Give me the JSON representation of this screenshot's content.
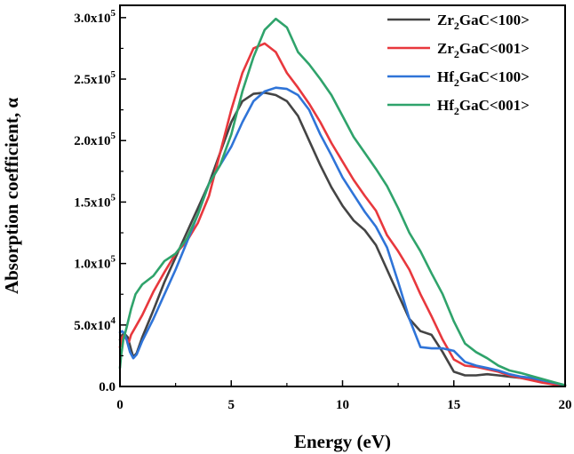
{
  "chart_data": {
    "type": "line",
    "xlabel": "Energy (eV)",
    "ylabel": "Absorption coefficient, α",
    "xlim": [
      0,
      20
    ],
    "ylim": [
      0,
      310000
    ],
    "xticks": [
      0,
      5,
      10,
      15,
      20
    ],
    "xtick_labels": [
      "0",
      "5",
      "10",
      "15",
      "20"
    ],
    "yticks": [
      0,
      50000,
      100000,
      150000,
      200000,
      250000,
      300000
    ],
    "ytick_labels": [
      {
        "base": "0.0",
        "exp": ""
      },
      {
        "base": "5.0x10",
        "exp": "4"
      },
      {
        "base": "1.0x10",
        "exp": "5"
      },
      {
        "base": "1.5x10",
        "exp": "5"
      },
      {
        "base": "2.0x10",
        "exp": "5"
      },
      {
        "base": "2.5x10",
        "exp": "5"
      },
      {
        "base": "3.0x10",
        "exp": "5"
      }
    ],
    "grid": false,
    "legend_position": "top-right",
    "series": [
      {
        "legend": {
          "prefix": "Zr",
          "sub": "2",
          "suffix": "GaC<100>"
        },
        "color": "#444444",
        "x": [
          0,
          0.1,
          0.2,
          0.35,
          0.5,
          0.6,
          0.75,
          1.0,
          1.5,
          2,
          2.5,
          3,
          3.5,
          4,
          4.5,
          5,
          5.5,
          6,
          6.5,
          7,
          7.5,
          8,
          8.5,
          9,
          9.5,
          10,
          10.5,
          11,
          11.5,
          12,
          12.5,
          13,
          13.5,
          14,
          14.5,
          15,
          15.5,
          16,
          16.5,
          17,
          17.5,
          18,
          18.5,
          19,
          19.5,
          20
        ],
        "y": [
          38000,
          42000,
          43000,
          40000,
          30000,
          24000,
          27000,
          40000,
          62000,
          85000,
          105000,
          125000,
          145000,
          165000,
          190000,
          215000,
          232000,
          238000,
          239000,
          237000,
          232000,
          220000,
          200000,
          180000,
          162000,
          147000,
          135000,
          127000,
          115000,
          95000,
          75000,
          55000,
          45000,
          42000,
          28000,
          12000,
          9000,
          9000,
          10000,
          9000,
          8000,
          7000,
          6000,
          5000,
          3000,
          1000
        ]
      },
      {
        "legend": {
          "prefix": "Zr",
          "sub": "2",
          "suffix": "GaC<001>"
        },
        "color": "#e8383d",
        "x": [
          0,
          0.1,
          0.2,
          0.3,
          0.4,
          0.5,
          0.75,
          1.0,
          1.5,
          2,
          2.5,
          3,
          3.5,
          4,
          4.5,
          5,
          5.5,
          6,
          6.5,
          7,
          7.5,
          8,
          8.5,
          9,
          9.5,
          10,
          10.5,
          11,
          11.5,
          12,
          12.5,
          13,
          13.5,
          14,
          14.5,
          15,
          15.5,
          16,
          16.5,
          17,
          17.5,
          18,
          18.5,
          19,
          19.5,
          20
        ],
        "y": [
          32000,
          40000,
          42000,
          38000,
          36000,
          42000,
          50000,
          58000,
          77000,
          93000,
          108000,
          118000,
          133000,
          155000,
          190000,
          225000,
          255000,
          275000,
          279000,
          272000,
          255000,
          243000,
          230000,
          215000,
          198000,
          183000,
          168000,
          155000,
          143000,
          123000,
          110000,
          95000,
          75000,
          57000,
          38000,
          22000,
          17000,
          16000,
          14000,
          12000,
          9000,
          7000,
          5000,
          3000,
          1500,
          500
        ]
      },
      {
        "legend": {
          "prefix": "Hf",
          "sub": "2",
          "suffix": "GaC<100>"
        },
        "color": "#2f74d8",
        "x": [
          0,
          0.1,
          0.2,
          0.3,
          0.45,
          0.6,
          0.75,
          1.0,
          1.5,
          2,
          2.5,
          3,
          3.5,
          4,
          4.5,
          5,
          5.5,
          6,
          6.5,
          7,
          7.5,
          8,
          8.5,
          9,
          9.5,
          10,
          10.5,
          11,
          11.5,
          12,
          12.5,
          13,
          13.5,
          14,
          14.5,
          15,
          15.5,
          16,
          16.5,
          17,
          17.5,
          18,
          18.5,
          19,
          19.5,
          20
        ],
        "y": [
          44000,
          45000,
          43000,
          38000,
          28000,
          23000,
          26000,
          37000,
          55000,
          75000,
          95000,
          117000,
          140000,
          165000,
          180000,
          195000,
          215000,
          232000,
          240000,
          243000,
          242000,
          237000,
          225000,
          205000,
          188000,
          170000,
          156000,
          142000,
          130000,
          113000,
          85000,
          55000,
          32000,
          31000,
          31000,
          29000,
          20000,
          17000,
          15000,
          13000,
          10000,
          8000,
          7000,
          5000,
          3000,
          1000
        ]
      },
      {
        "legend": {
          "prefix": "Hf",
          "sub": "2",
          "suffix": "GaC<001>"
        },
        "color": "#2fa36b",
        "x": [
          0,
          0.05,
          0.15,
          0.3,
          0.5,
          0.7,
          1.0,
          1.5,
          2,
          2.5,
          3,
          3.5,
          4,
          4.5,
          5,
          5.5,
          6,
          6.5,
          7,
          7.5,
          8,
          8.5,
          9,
          9.5,
          10,
          10.5,
          11,
          11.5,
          12,
          12.5,
          13,
          13.5,
          14,
          14.5,
          15,
          15.5,
          16,
          16.5,
          17,
          17.5,
          18,
          18.5,
          19,
          19.5,
          20
        ],
        "y": [
          15000,
          25000,
          38000,
          48000,
          63000,
          75000,
          83000,
          90000,
          102000,
          108000,
          120000,
          140000,
          165000,
          180000,
          205000,
          240000,
          268000,
          290000,
          299000,
          292000,
          272000,
          262000,
          250000,
          237000,
          220000,
          203000,
          190000,
          177000,
          163000,
          145000,
          125000,
          110000,
          92000,
          75000,
          53000,
          35000,
          28000,
          23000,
          17000,
          13000,
          11000,
          8500,
          6000,
          3500,
          1000
        ]
      }
    ]
  }
}
